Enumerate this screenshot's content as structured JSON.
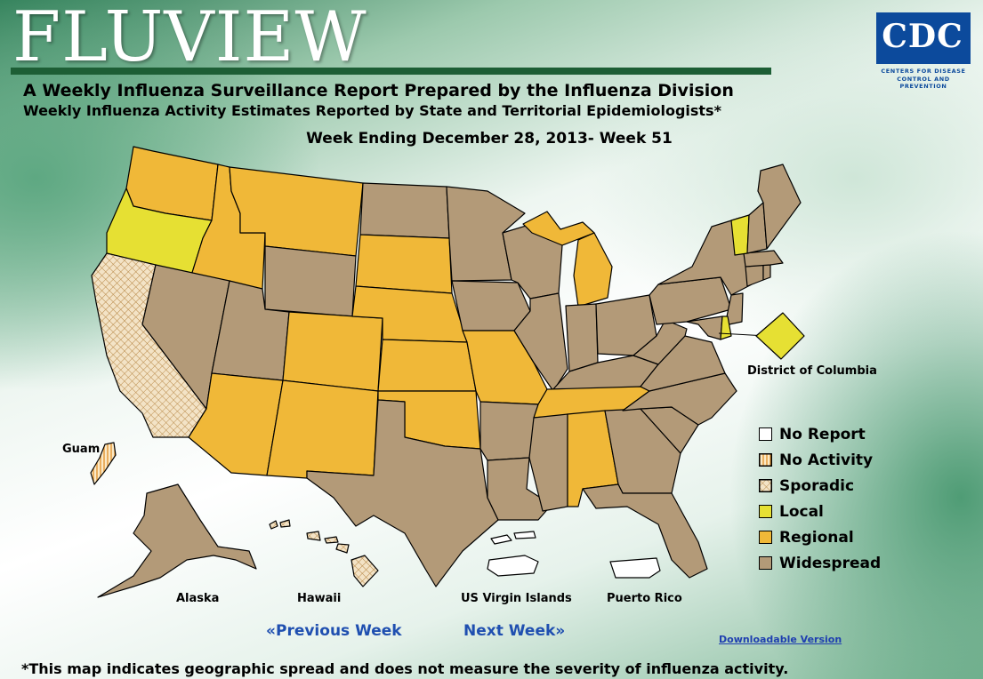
{
  "header": {
    "logo": "FLUVIEW",
    "title": "A Weekly Influenza Surveillance Report Prepared by the Influenza Division",
    "subtitle": "Weekly Influenza Activity Estimates Reported by State and Territorial Epidemiologists*",
    "week": "Week Ending December 28, 2013- Week 51"
  },
  "agency_logo": {
    "text": "CDC",
    "line1": "CENTERS FOR DISEASE",
    "line2": "CONTROL AND PREVENTION"
  },
  "colors": {
    "no_report": "#ffffff",
    "no_activity": "#f3d7a0",
    "sporadic": "#f0dcbc",
    "local": "#e6e033",
    "regional": "#f0b838",
    "widespread": "#b39a78"
  },
  "legend": [
    {
      "key": "no_report",
      "label": "No Report"
    },
    {
      "key": "no_activity",
      "label": "No Activity"
    },
    {
      "key": "sporadic",
      "label": "Sporadic"
    },
    {
      "key": "local",
      "label": "Local"
    },
    {
      "key": "regional",
      "label": "Regional"
    },
    {
      "key": "widespread",
      "label": "Widespread"
    }
  ],
  "region_labels": {
    "dc": "District of Columbia",
    "guam": "Guam",
    "alaska": "Alaska",
    "hawaii": "Hawaii",
    "usvi": "US Virgin Islands",
    "puerto_rico": "Puerto Rico"
  },
  "states": {
    "local": [
      "Oregon",
      "Vermont",
      "Delaware",
      "District of Columbia"
    ],
    "regional": [
      "Washington",
      "Idaho",
      "Montana",
      "South Dakota",
      "Nebraska",
      "Colorado",
      "Kansas",
      "Oklahoma",
      "Arizona",
      "New Mexico",
      "Missouri",
      "Tennessee",
      "Alabama",
      "Michigan"
    ],
    "sporadic": [
      "California",
      "Hawaii"
    ],
    "no_activity": [
      "Guam"
    ],
    "no_report": [
      "US Virgin Islands",
      "Puerto Rico"
    ],
    "widespread": [
      "Nevada",
      "Utah",
      "Wyoming",
      "North Dakota",
      "Minnesota",
      "Iowa",
      "Wisconsin",
      "Illinois",
      "Indiana",
      "Ohio",
      "Kentucky",
      "West Virginia",
      "Virginia",
      "North Carolina",
      "South Carolina",
      "Georgia",
      "Florida",
      "Mississippi",
      "Louisiana",
      "Arkansas",
      "Texas",
      "Pennsylvania",
      "New York",
      "New Jersey",
      "Maryland",
      "Connecticut",
      "Rhode Island",
      "Massachusetts",
      "New Hampshire",
      "Maine",
      "Alaska"
    ]
  },
  "navigation": {
    "previous": "«Previous Week",
    "next": "Next Week»",
    "download": "Downloadable Version"
  },
  "footnote": "*This map indicates geographic spread and does not measure the severity of influenza activity."
}
